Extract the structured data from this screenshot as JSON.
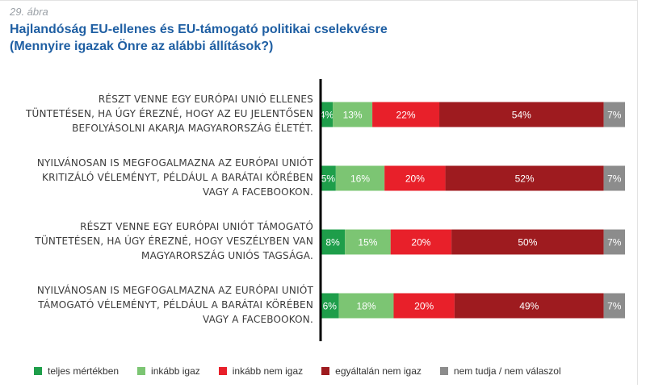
{
  "header": {
    "figure_label": "29. ábra",
    "title": "Hajlandóság EU-ellenes és EU-támogató politikai cselekvésre",
    "subtitle": "(Mennyire igazak Önre az alábbi állítások?)"
  },
  "chart_data": {
    "type": "bar",
    "orientation": "horizontal",
    "stacked": true,
    "percent": true,
    "categories": [
      [
        "RÉSZT VENNE EGY EURÓPAI UNIÓ ELLENES",
        "TÜNTETÉSEN, HA ÚGY ÉREZNÉ, HOGY AZ EU JELENTŐSEN",
        "BEFOLYÁSOLNI AKARJA MAGYARORSZÁG ÉLETÉT."
      ],
      [
        "NYILVÁNOSAN IS MEGFOGALMAZNA AZ EURÓPAI UNIÓT",
        "KRITIZÁLÓ VÉLEMÉNYT, PÉLDÁUL A BARÁTAI KÖRÉBEN",
        "VAGY A FACEBOOKON."
      ],
      [
        "RÉSZT VENNE EGY EURÓPAI UNIÓT TÁMOGATÓ",
        "TÜNTETÉSEN, HA ÚGY ÉREZNÉ, HOGY VESZÉLYBEN VAN",
        "MAGYARORSZÁG UNIÓS TAGSÁGA."
      ],
      [
        "NYILVÁNOSAN IS MEGFOGALMAZNA AZ EURÓPAI UNIÓT",
        "TÁMOGATÓ VÉLEMÉNYT, PÉLDÁUL A BARÁTAI KÖRÉBEN",
        "VAGY A FACEBOOKON."
      ]
    ],
    "series": [
      {
        "name": "teljes mértékben",
        "color": "#1e9e4a",
        "values": [
          4,
          5,
          8,
          6
        ]
      },
      {
        "name": "inkább igaz",
        "color": "#7cc573",
        "values": [
          13,
          16,
          15,
          18
        ]
      },
      {
        "name": "inkább nem igaz",
        "color": "#e8202a",
        "values": [
          22,
          20,
          20,
          20
        ]
      },
      {
        "name": "egyáltalán nem igaz",
        "color": "#9e1b1f",
        "values": [
          54,
          52,
          50,
          49
        ]
      },
      {
        "name": "nem tudja / nem válaszol",
        "color": "#8c8c8c",
        "values": [
          7,
          7,
          7,
          7
        ]
      }
    ],
    "value_suffix": "%",
    "legend_position": "bottom",
    "grid": false
  }
}
